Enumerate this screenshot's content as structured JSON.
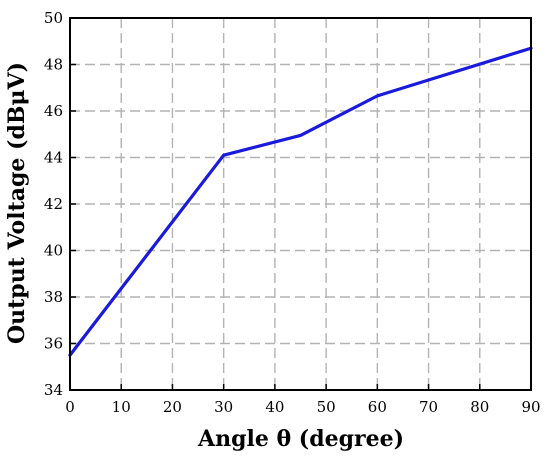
{
  "chart_data": {
    "type": "line",
    "title": "",
    "xlabel": "Angle θ (degree)",
    "ylabel": "Output Voltage (dBμV)",
    "xlim": [
      0,
      90
    ],
    "ylim": [
      34,
      50
    ],
    "xticks": [
      0,
      10,
      20,
      30,
      40,
      50,
      60,
      70,
      80,
      90
    ],
    "yticks": [
      34,
      36,
      38,
      40,
      42,
      44,
      46,
      48,
      50
    ],
    "grid": true,
    "series": [
      {
        "color": "#1a1adc",
        "x": [
          0,
          30,
          45,
          60,
          90
        ],
        "y": [
          35.5,
          44.1,
          44.95,
          46.65,
          48.7
        ]
      }
    ]
  }
}
